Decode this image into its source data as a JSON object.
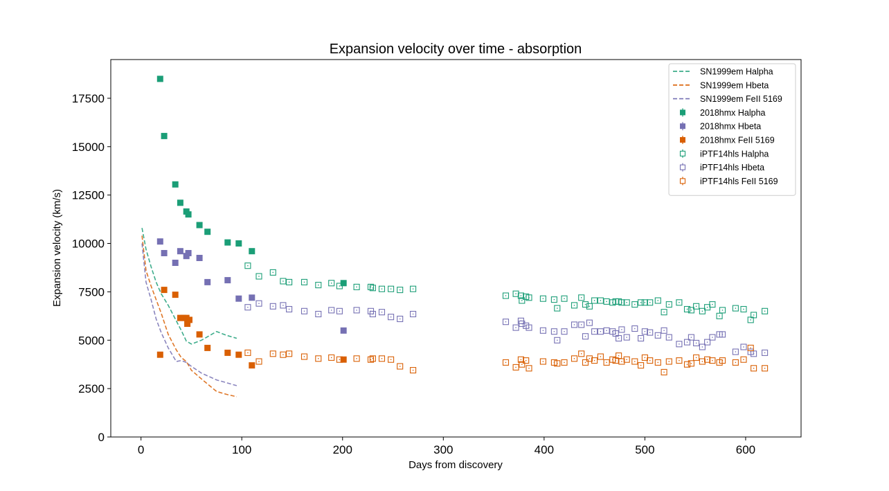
{
  "chart_data": {
    "type": "scatter",
    "title": "Expansion velocity over time - absorption",
    "xlabel": "Days from discovery",
    "ylabel": "Expansion velocity (km/s)",
    "xlim": [
      -30,
      655
    ],
    "ylim": [
      0,
      19500
    ],
    "xticks": [
      0,
      100,
      200,
      300,
      400,
      500,
      600
    ],
    "yticks": [
      0,
      2500,
      5000,
      7500,
      10000,
      12500,
      15000,
      17500
    ],
    "grid": false,
    "legend_position": "top-right",
    "colors": {
      "green": "#1b9e77",
      "orange": "#d95f02",
      "purple": "#7570b3"
    },
    "series": [
      {
        "name": "SN1999em Halpha",
        "kind": "line",
        "color": "#1b9e77",
        "x": [
          1,
          5,
          10,
          15,
          20,
          27,
          35,
          40,
          45,
          50,
          60,
          75,
          85,
          95
        ],
        "y": [
          10800,
          9700,
          8800,
          8000,
          7400,
          6800,
          6000,
          5500,
          4950,
          4800,
          5000,
          5450,
          5250,
          5100
        ]
      },
      {
        "name": "SN1999em Hbeta",
        "kind": "line",
        "color": "#d95f02",
        "x": [
          1,
          5,
          10,
          15,
          20,
          27,
          35,
          40,
          45,
          50,
          60,
          75,
          85,
          95
        ],
        "y": [
          10400,
          8600,
          7800,
          7100,
          6400,
          5300,
          4500,
          4100,
          3900,
          3450,
          3000,
          2350,
          2200,
          2080
        ]
      },
      {
        "name": "SN1999em FeII 5169",
        "kind": "line",
        "color": "#7570b3",
        "x": [
          1,
          5,
          10,
          15,
          20,
          27,
          35,
          40,
          45,
          50,
          60,
          75,
          85,
          95
        ],
        "y": [
          10000,
          8000,
          7100,
          6100,
          5400,
          4600,
          3900,
          3950,
          3850,
          3650,
          3300,
          2950,
          2800,
          2650
        ]
      },
      {
        "name": "2018hmx Halpha",
        "kind": "filled",
        "color": "#1b9e77",
        "x": [
          19,
          23,
          34,
          39,
          45,
          47,
          58,
          66,
          86,
          97,
          110,
          201
        ],
        "y": [
          18500,
          15550,
          13050,
          12100,
          11650,
          11500,
          10950,
          10600,
          10050,
          10000,
          9600,
          7950
        ]
      },
      {
        "name": "2018hmx Hbeta",
        "kind": "filled",
        "color": "#7570b3",
        "x": [
          19,
          23,
          34,
          39,
          45,
          47,
          58,
          66,
          86,
          97,
          110,
          201
        ],
        "y": [
          10100,
          9500,
          9000,
          9600,
          9350,
          9500,
          9250,
          8000,
          8100,
          7150,
          7200,
          5500
        ]
      },
      {
        "name": "2018hmx FeII 5169",
        "kind": "filled",
        "color": "#d95f02",
        "x": [
          19,
          23,
          34,
          39,
          42,
          45,
          46,
          48,
          58,
          66,
          86,
          97,
          110,
          201
        ],
        "y": [
          4250,
          7600,
          7350,
          6150,
          6150,
          6150,
          5850,
          6050,
          5300,
          4600,
          4350,
          4250,
          3700,
          4000
        ]
      },
      {
        "name": "iPTF14hls Halpha",
        "kind": "open",
        "color": "#1b9e77",
        "x": [
          106,
          117,
          131,
          141,
          147,
          162,
          176,
          189,
          197,
          214,
          228,
          230,
          239,
          248,
          257,
          270,
          362,
          372,
          377,
          378,
          382,
          385,
          399,
          410,
          413,
          420,
          430,
          437,
          441,
          445,
          450,
          456,
          462,
          468,
          471,
          474,
          477,
          482,
          490,
          496,
          500,
          505,
          513,
          519,
          524,
          534,
          542,
          546,
          551,
          557,
          562,
          567,
          574,
          577,
          590,
          598,
          605,
          608,
          619
        ],
        "y": [
          8850,
          8300,
          8500,
          8050,
          8000,
          8000,
          7850,
          7950,
          7800,
          7750,
          7750,
          7700,
          7650,
          7650,
          7600,
          7650,
          7300,
          7400,
          7300,
          7050,
          7250,
          7200,
          7150,
          7100,
          6650,
          7150,
          6800,
          7200,
          6850,
          6750,
          7050,
          7050,
          7000,
          6950,
          7000,
          7000,
          6950,
          6950,
          6850,
          6950,
          6950,
          6950,
          7050,
          6450,
          6850,
          6950,
          6600,
          6550,
          6750,
          6500,
          6700,
          6850,
          6250,
          6550,
          6650,
          6600,
          6050,
          6300,
          6500
        ]
      },
      {
        "name": "iPTF14hls Hbeta",
        "kind": "open",
        "color": "#7570b3",
        "x": [
          106,
          117,
          131,
          141,
          147,
          162,
          176,
          189,
          197,
          214,
          228,
          230,
          239,
          248,
          257,
          270,
          362,
          372,
          377,
          378,
          382,
          385,
          399,
          410,
          413,
          420,
          430,
          437,
          441,
          445,
          450,
          456,
          462,
          468,
          471,
          474,
          477,
          482,
          490,
          496,
          500,
          505,
          513,
          519,
          524,
          534,
          542,
          546,
          551,
          557,
          562,
          567,
          574,
          577,
          590,
          598,
          605,
          608,
          619
        ],
        "y": [
          6700,
          6900,
          6750,
          6800,
          6600,
          6500,
          6350,
          6550,
          6500,
          6550,
          6500,
          6350,
          6450,
          6200,
          6100,
          6350,
          5950,
          5650,
          6000,
          5850,
          5750,
          5650,
          5500,
          5450,
          5000,
          5450,
          5800,
          5800,
          5200,
          5900,
          5450,
          5450,
          5500,
          5450,
          5350,
          5100,
          5550,
          5150,
          5600,
          5100,
          5450,
          5400,
          5250,
          5500,
          5150,
          4800,
          4900,
          5150,
          4850,
          4650,
          4900,
          5150,
          5300,
          5300,
          4400,
          4650,
          4400,
          4300,
          4350
        ]
      },
      {
        "name": "iPTF14hls FeII 5169",
        "kind": "open",
        "color": "#d95f02",
        "x": [
          106,
          117,
          131,
          141,
          147,
          162,
          176,
          189,
          197,
          214,
          228,
          230,
          239,
          248,
          257,
          270,
          362,
          372,
          377,
          378,
          382,
          385,
          399,
          410,
          413,
          420,
          430,
          437,
          441,
          445,
          450,
          456,
          462,
          468,
          471,
          474,
          477,
          482,
          490,
          496,
          500,
          505,
          513,
          519,
          524,
          534,
          542,
          546,
          551,
          557,
          562,
          567,
          574,
          577,
          590,
          598,
          605,
          608,
          619
        ],
        "y": [
          4350,
          3900,
          4300,
          4250,
          4300,
          4150,
          4050,
          4100,
          4000,
          4050,
          4000,
          4050,
          4050,
          4000,
          3650,
          3450,
          3850,
          3600,
          4000,
          3750,
          3950,
          3550,
          3900,
          3850,
          3800,
          3850,
          4050,
          4300,
          3850,
          4050,
          3950,
          4150,
          3850,
          4000,
          3950,
          4200,
          3900,
          4000,
          3900,
          3700,
          4100,
          3950,
          3850,
          3350,
          3900,
          3950,
          3750,
          3800,
          4100,
          3900,
          4000,
          3950,
          3850,
          3950,
          3850,
          4000,
          4600,
          3550,
          3550
        ]
      }
    ]
  }
}
